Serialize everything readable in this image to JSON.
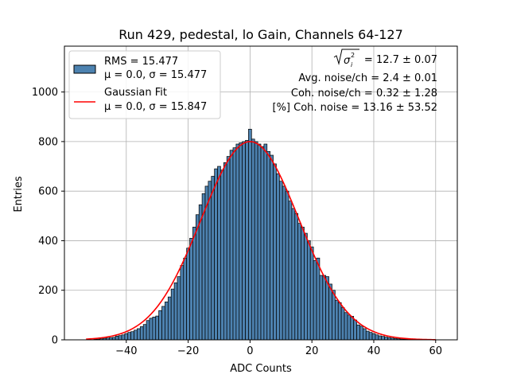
{
  "chart_data": {
    "type": "bar",
    "title": "Run 429, pedestal, lo Gain, Channels 64-127",
    "xlabel": "ADC Counts",
    "ylabel": "Entries",
    "xlim": [
      -60,
      67
    ],
    "ylim": [
      0,
      1185
    ],
    "xticks": [
      -40,
      -20,
      0,
      20,
      40,
      60
    ],
    "yticks": [
      0,
      200,
      400,
      600,
      800,
      1000
    ],
    "grid": true,
    "legend_position": "top-left",
    "bin_width": 1,
    "bins": [
      [
        -50,
        2
      ],
      [
        -49,
        3
      ],
      [
        -48,
        4
      ],
      [
        -47,
        6
      ],
      [
        -46,
        7
      ],
      [
        -45,
        9
      ],
      [
        -44,
        10
      ],
      [
        -43,
        15
      ],
      [
        -42,
        17
      ],
      [
        -41,
        20
      ],
      [
        -40,
        25
      ],
      [
        -39,
        30
      ],
      [
        -38,
        33
      ],
      [
        -37,
        39
      ],
      [
        -36,
        45
      ],
      [
        -35,
        53
      ],
      [
        -34,
        62
      ],
      [
        -33,
        78
      ],
      [
        -32,
        87
      ],
      [
        -31,
        92
      ],
      [
        -30,
        96
      ],
      [
        -29,
        118
      ],
      [
        -28,
        135
      ],
      [
        -27,
        153
      ],
      [
        -26,
        173
      ],
      [
        -25,
        205
      ],
      [
        -24,
        230
      ],
      [
        -23,
        255
      ],
      [
        -22,
        300
      ],
      [
        -21,
        330
      ],
      [
        -20,
        370
      ],
      [
        -19,
        410
      ],
      [
        -18,
        455
      ],
      [
        -17,
        505
      ],
      [
        -16,
        545
      ],
      [
        -15,
        590
      ],
      [
        -14,
        620
      ],
      [
        -13,
        640
      ],
      [
        -12,
        660
      ],
      [
        -11,
        690
      ],
      [
        -10,
        700
      ],
      [
        -9,
        685
      ],
      [
        -8,
        715
      ],
      [
        -7,
        740
      ],
      [
        -6,
        765
      ],
      [
        -5,
        775
      ],
      [
        -4,
        790
      ],
      [
        -3,
        795
      ],
      [
        -2,
        800
      ],
      [
        -1,
        805
      ],
      [
        0,
        850
      ],
      [
        1,
        810
      ],
      [
        2,
        800
      ],
      [
        3,
        790
      ],
      [
        4,
        780
      ],
      [
        5,
        790
      ],
      [
        6,
        760
      ],
      [
        7,
        745
      ],
      [
        8,
        710
      ],
      [
        9,
        670
      ],
      [
        10,
        640
      ],
      [
        11,
        620
      ],
      [
        12,
        600
      ],
      [
        13,
        560
      ],
      [
        14,
        530
      ],
      [
        15,
        510
      ],
      [
        16,
        470
      ],
      [
        17,
        455
      ],
      [
        18,
        430
      ],
      [
        19,
        400
      ],
      [
        20,
        375
      ],
      [
        21,
        320
      ],
      [
        22,
        330
      ],
      [
        23,
        260
      ],
      [
        24,
        260
      ],
      [
        25,
        255
      ],
      [
        26,
        225
      ],
      [
        27,
        200
      ],
      [
        28,
        160
      ],
      [
        29,
        150
      ],
      [
        30,
        130
      ],
      [
        31,
        110
      ],
      [
        32,
        100
      ],
      [
        33,
        95
      ],
      [
        34,
        80
      ],
      [
        35,
        60
      ],
      [
        36,
        55
      ],
      [
        37,
        45
      ],
      [
        38,
        35
      ],
      [
        39,
        30
      ],
      [
        40,
        25
      ],
      [
        41,
        20
      ],
      [
        42,
        16
      ],
      [
        43,
        14
      ],
      [
        44,
        11
      ],
      [
        45,
        9
      ],
      [
        46,
        7
      ],
      [
        47,
        5
      ],
      [
        48,
        4
      ],
      [
        49,
        3
      ],
      [
        50,
        2
      ],
      [
        51,
        2
      ],
      [
        52,
        1
      ],
      [
        53,
        1
      ],
      [
        54,
        1
      ],
      [
        55,
        1
      ]
    ],
    "fit": {
      "mu": 0.0,
      "sigma": 15.847,
      "amplitude": 800,
      "x_range": [
        -53,
        60
      ]
    },
    "colors": {
      "bar_fill": "#4d82b0",
      "bar_edge": "#000000",
      "fit_line": "#ff0000",
      "grid": "#b0b0b0"
    }
  },
  "legend": [
    {
      "name": "RMS = 15.477",
      "detail": "μ = 0.0, σ = 15.477"
    },
    {
      "name": "Gaussian Fit",
      "detail": "μ = 0.0, σ = 15.847"
    }
  ],
  "annotations": {
    "line1": "= 12.7 ± 0.07",
    "line2": "Avg. noise/ch = 2.4 ± 0.01",
    "line3": "Coh. noise/ch = 0.32 ± 1.28",
    "line4": "[%] Coh. noise = 13.16 ± 53.52"
  }
}
